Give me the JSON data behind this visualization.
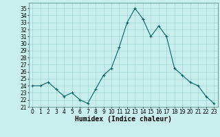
{
  "x": [
    0,
    1,
    2,
    3,
    4,
    5,
    6,
    7,
    8,
    9,
    10,
    11,
    12,
    13,
    14,
    15,
    16,
    17,
    18,
    19,
    20,
    21,
    22,
    23
  ],
  "y": [
    24.0,
    24.0,
    24.5,
    23.5,
    22.5,
    23.0,
    22.0,
    21.5,
    23.5,
    25.5,
    26.5,
    29.5,
    33.0,
    35.0,
    33.5,
    31.0,
    32.5,
    31.0,
    26.5,
    25.5,
    24.5,
    24.0,
    22.5,
    21.5
  ],
  "xlabel": "Humidex (Indice chaleur)",
  "xlim": [
    -0.5,
    23.5
  ],
  "ylim": [
    21,
    35.8
  ],
  "yticks": [
    21,
    22,
    23,
    24,
    25,
    26,
    27,
    28,
    29,
    30,
    31,
    32,
    33,
    34,
    35
  ],
  "xticks": [
    0,
    1,
    2,
    3,
    4,
    5,
    6,
    7,
    8,
    9,
    10,
    11,
    12,
    13,
    14,
    15,
    16,
    17,
    18,
    19,
    20,
    21,
    22,
    23
  ],
  "line_color": "#006666",
  "bg_color": "#c8eeee",
  "grid_color": "#99cccc",
  "tick_fontsize": 5.5,
  "xlabel_fontsize": 7,
  "marker": "+"
}
